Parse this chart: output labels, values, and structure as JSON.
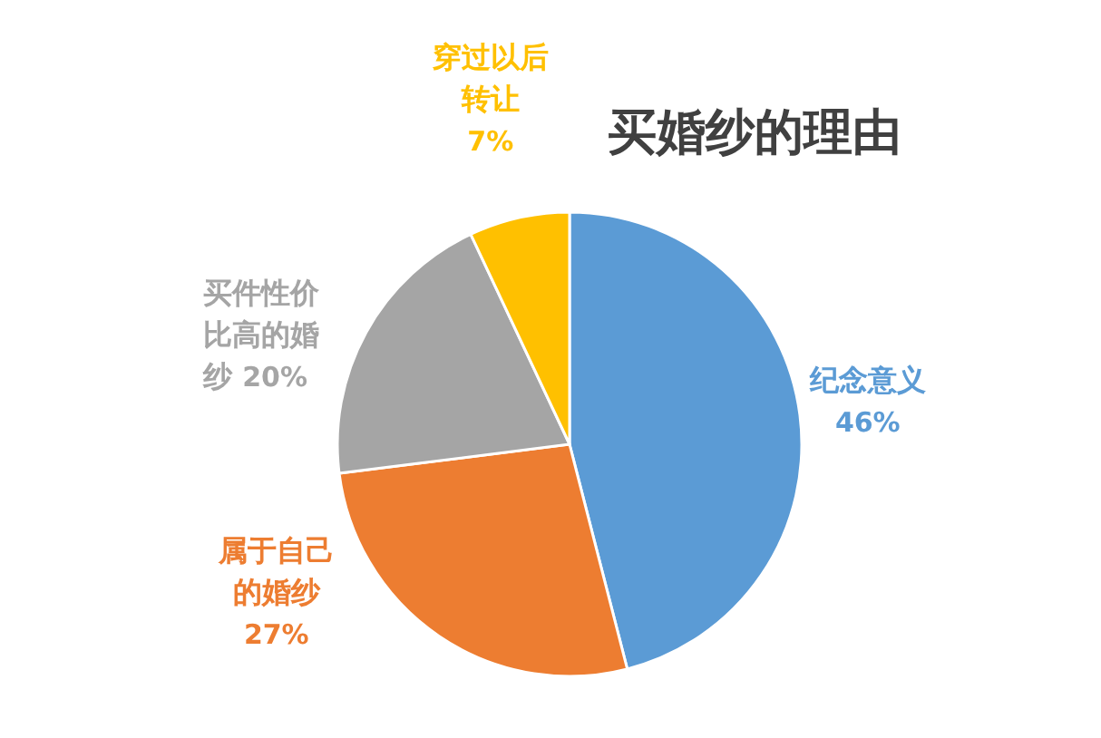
{
  "chart_data": {
    "type": "pie",
    "title": "买婚纱的理由",
    "categories": [
      "纪念意义",
      "属于自己的婚纱",
      "买件性价比高的婚纱",
      "穿过以后转让"
    ],
    "values": [
      46,
      27,
      20,
      7
    ],
    "colors": [
      "#5b9bd5",
      "#ed7d31",
      "#a5a5a5",
      "#ffc000"
    ],
    "value_labels": [
      "46%",
      "27%",
      "20%",
      "7%"
    ]
  }
}
